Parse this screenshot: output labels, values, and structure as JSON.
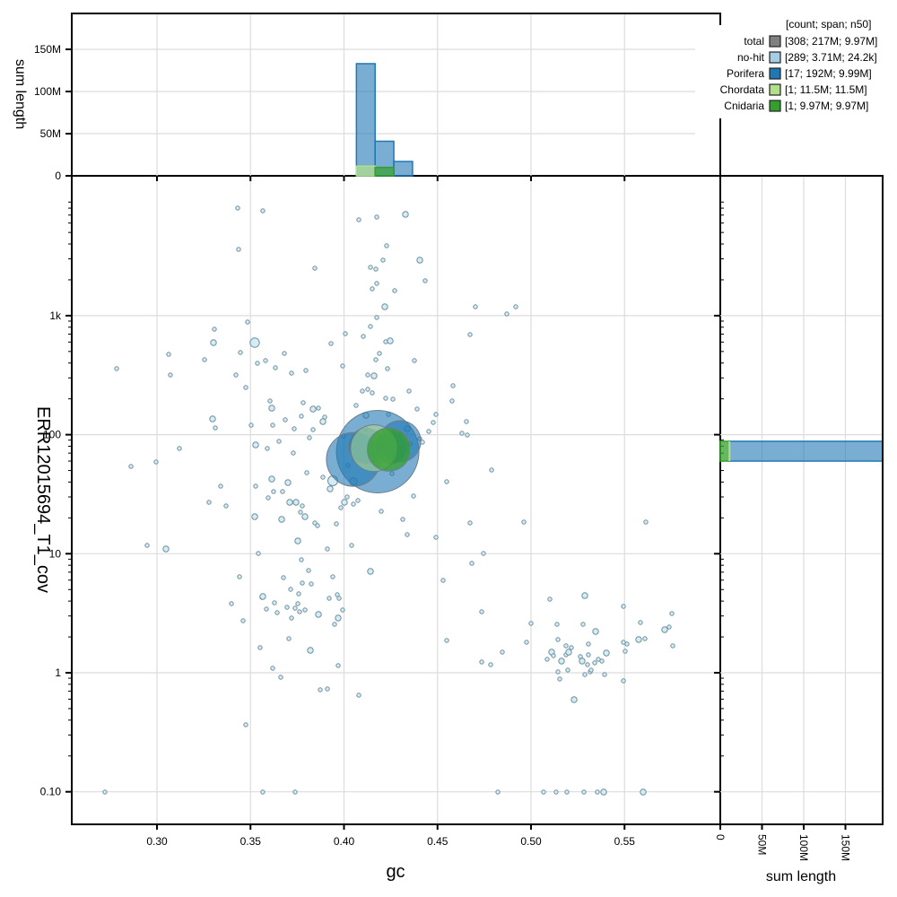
{
  "chart_data": {
    "type": "scatter",
    "title": "",
    "xlabel": "gc",
    "ylabel": "ERR12015694_T1_cov",
    "xlim": [
      0.255,
      0.602
    ],
    "ylim_log": [
      0.06,
      4000
    ],
    "x_ticks": [
      "0.30",
      "0.35",
      "0.40",
      "0.45",
      "0.50",
      "0.55"
    ],
    "y_ticks": [
      "0.10",
      "1",
      "10",
      "100",
      "1k"
    ],
    "y_top_tick_label": "0",
    "grid": true,
    "legend": {
      "position": "top-right",
      "header": "[count; span; n50]",
      "entries": [
        {
          "name": "total",
          "stats": "[308; 217M; 9.97M]",
          "color": "#808080",
          "count": 308,
          "span": "217M",
          "n50": "9.97M"
        },
        {
          "name": "no-hit",
          "stats": "[289; 3.71M; 24.2k]",
          "color": "#a6cee3",
          "count": 289,
          "span": "3.71M",
          "n50": "24.2k"
        },
        {
          "name": "Porifera",
          "stats": "[17; 192M; 9.99M]",
          "color": "#1f78b4",
          "count": 17,
          "span": "192M",
          "n50": "9.99M"
        },
        {
          "name": "Chordata",
          "stats": "[1; 11.5M; 11.5M]",
          "color": "#b2df8a",
          "count": 1,
          "span": "11.5M",
          "n50": "11.5M"
        },
        {
          "name": "Cnidaria",
          "stats": "[1; 9.97M; 9.97M]",
          "color": "#33a02c",
          "count": 1,
          "span": "9.97M",
          "n50": "9.97M"
        }
      ]
    },
    "top_histogram": {
      "ylabel": "sum length",
      "y_ticks": [
        "0",
        "50M",
        "100M",
        "150M"
      ],
      "bins": [
        {
          "x0": 0.41,
          "x1": 0.42,
          "series": "Porifera",
          "value_M": 133
        },
        {
          "x0": 0.42,
          "x1": 0.43,
          "series": "Porifera",
          "value_M": 41
        },
        {
          "x0": 0.43,
          "x1": 0.44,
          "series": "Porifera",
          "value_M": 17
        },
        {
          "x0": 0.41,
          "x1": 0.42,
          "series": "Chordata",
          "value_M": 11.5
        },
        {
          "x0": 0.42,
          "x1": 0.43,
          "series": "Cnidaria",
          "value_M": 9.97
        }
      ]
    },
    "right_histogram": {
      "xlabel": "sum length",
      "x_ticks": [
        "0",
        "50M",
        "100M",
        "150M"
      ],
      "bins": [
        {
          "cov_range": [
            60,
            88
          ],
          "series": "Porifera",
          "value_M": 192
        },
        {
          "cov_range": [
            60,
            88
          ],
          "series": "Cnidaria",
          "value_M": 9.97
        },
        {
          "cov_range": [
            60,
            88
          ],
          "series": "Chordata",
          "value_M": 11.5
        }
      ]
    },
    "series": [
      {
        "name": "Porifera",
        "color": "#1f78b4",
        "points": [
          {
            "gc": 0.418,
            "cov": 72,
            "r": 46
          },
          {
            "gc": 0.405,
            "cov": 62,
            "r": 30
          },
          {
            "gc": 0.43,
            "cov": 88,
            "r": 23
          },
          {
            "gc": 0.412,
            "cov": 80,
            "r": 20
          },
          {
            "gc": 0.425,
            "cov": 78,
            "r": 18
          }
        ]
      },
      {
        "name": "Chordata",
        "color": "#b2df8a",
        "points": [
          {
            "gc": 0.416,
            "cov": 77,
            "r": 26
          }
        ]
      },
      {
        "name": "Cnidaria",
        "color": "#33a02c",
        "points": [
          {
            "gc": 0.424,
            "cov": 75,
            "r": 24
          }
        ]
      },
      {
        "name": "no-hit",
        "color": "#a6cee3",
        "points": "≈289 small points spread across gc 0.27–0.59, cov 0.1–3000"
      }
    ]
  }
}
